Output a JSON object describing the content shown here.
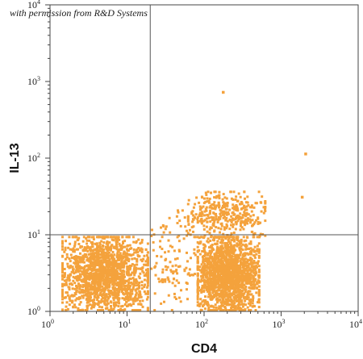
{
  "watermark": "with permission from R&D Systems",
  "chart_data": {
    "type": "scatter",
    "x_scale": "log",
    "y_scale": "log",
    "xlabel": "CD4",
    "ylabel": "IL-13",
    "xlim": [
      1,
      10000
    ],
    "ylim": [
      1,
      10000
    ],
    "x_ticks": [
      {
        "base": "10",
        "exp": "0"
      },
      {
        "base": "10",
        "exp": "1"
      },
      {
        "base": "10",
        "exp": "2"
      },
      {
        "base": "10",
        "exp": "3"
      },
      {
        "base": "10",
        "exp": "4"
      }
    ],
    "y_ticks": [
      {
        "base": "10",
        "exp": "0"
      },
      {
        "base": "10",
        "exp": "1"
      },
      {
        "base": "10",
        "exp": "2"
      },
      {
        "base": "10",
        "exp": "3"
      },
      {
        "base": "10",
        "exp": "4"
      }
    ],
    "quadrant_gate": {
      "x": 20,
      "y": 10
    },
    "point_color": "#f4a23c",
    "grid": false,
    "populations": [
      {
        "x_range": [
          1.4,
          18
        ],
        "y_range": [
          1.0,
          9.0
        ],
        "density": "high"
      },
      {
        "x_range": [
          80,
          500
        ],
        "y_range": [
          1.0,
          9.0
        ],
        "density": "high"
      },
      {
        "x_range": [
          60,
          600
        ],
        "y_range": [
          9,
          35
        ],
        "density": "medium"
      },
      {
        "x_range": [
          20,
          80
        ],
        "y_range": [
          1.0,
          20
        ],
        "density": "low"
      }
    ],
    "outliers": [
      [
        170,
        700
      ],
      [
        2000,
        110
      ],
      [
        1800,
        30
      ]
    ]
  }
}
